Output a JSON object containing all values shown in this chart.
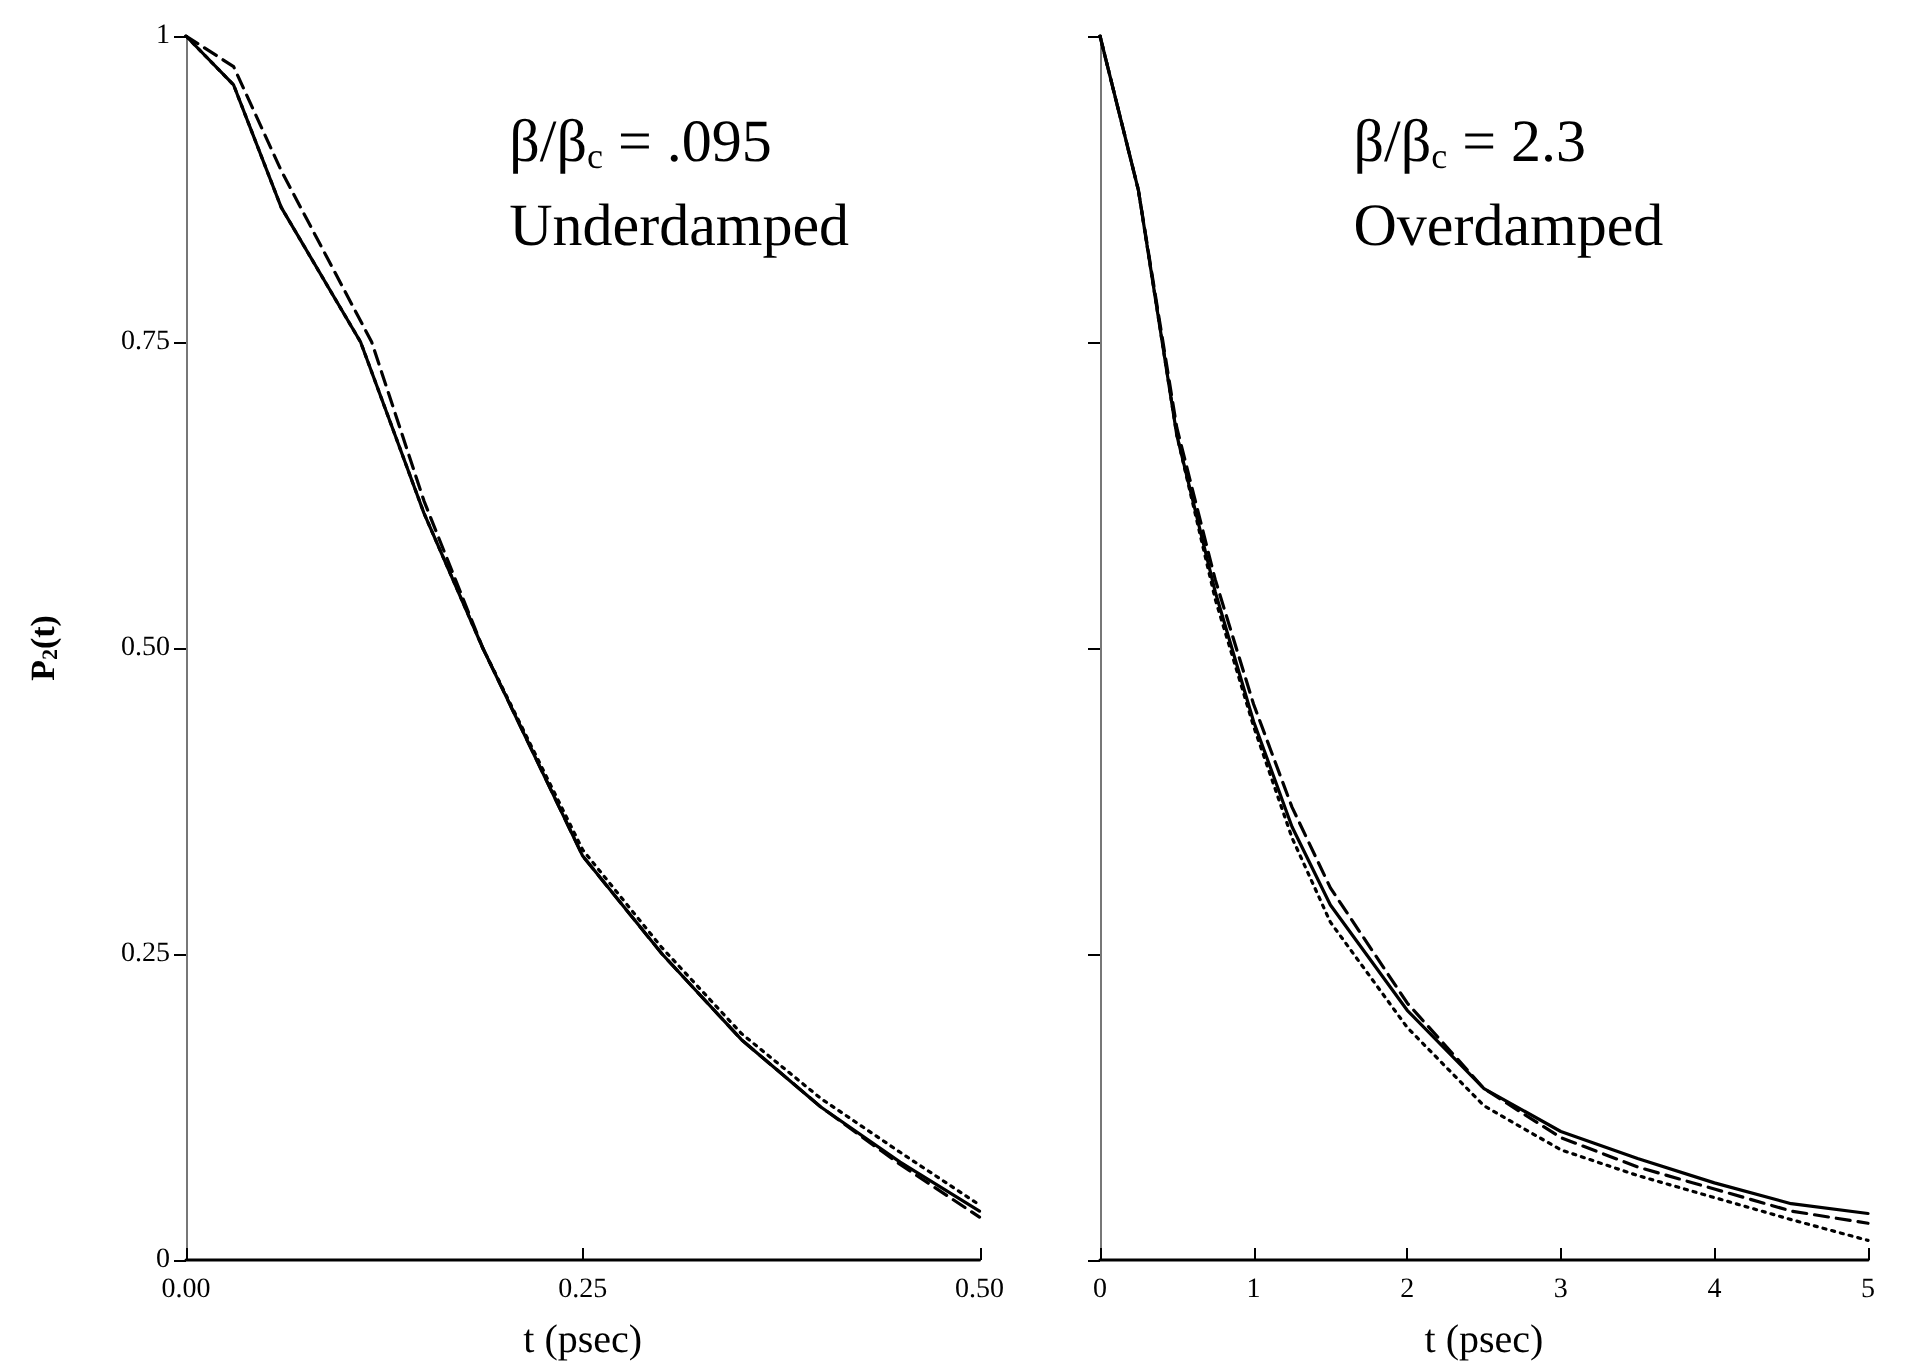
{
  "chart_data": [
    {
      "type": "line",
      "xlabel": "t (psec)",
      "ylabel": "P$_{2}$(t)",
      "annotations": [
        "β/β$_{c}$ = .095",
        "Underdamped"
      ],
      "xlim": [
        0,
        0.5
      ],
      "xticks": [
        {
          "value": 0,
          "label": "0.00"
        },
        0.25,
        {
          "value": 0.5,
          "label": "0.50"
        }
      ],
      "ylim": [
        0,
        1
      ],
      "yticks": [
        0,
        0.25,
        {
          "value": 0.5,
          "label": "0.50"
        },
        0.75,
        1
      ],
      "series": [
        {
          "color": "#000000",
          "line_style": "solid",
          "x": [
            0,
            0.03,
            0.06,
            0.11,
            0.15,
            0.187,
            0.25,
            0.3,
            0.35,
            0.4,
            0.45,
            0.5
          ],
          "values": [
            1,
            0.96,
            0.86,
            0.75,
            0.61,
            0.5,
            0.33,
            0.25,
            0.18,
            0.125,
            0.08,
            0.04
          ]
        },
        {
          "color": "#000000",
          "line_style": "dashed",
          "x": [
            0,
            0.03,
            0.06,
            0.117,
            0.15,
            0.187,
            0.25,
            0.3,
            0.35,
            0.4,
            0.45,
            0.5
          ],
          "values": [
            1,
            0.975,
            0.89,
            0.75,
            0.62,
            0.5,
            0.33,
            0.25,
            0.18,
            0.125,
            0.078,
            0.035
          ]
        },
        {
          "color": "#000000",
          "line_style": "dotted",
          "x": [
            0,
            0.03,
            0.06,
            0.11,
            0.15,
            0.187,
            0.25,
            0.3,
            0.35,
            0.4,
            0.45,
            0.5
          ],
          "values": [
            1,
            0.96,
            0.86,
            0.75,
            0.61,
            0.5,
            0.335,
            0.255,
            0.185,
            0.132,
            0.088,
            0.045
          ]
        }
      ]
    },
    {
      "type": "line",
      "xlabel": "t (psec)",
      "annotations": [
        "β/β$_{c}$ = 2.3",
        "Overdamped"
      ],
      "xlim": [
        0,
        5
      ],
      "xticks": [
        0,
        1,
        2,
        3,
        4,
        5
      ],
      "ylim": [
        0,
        1
      ],
      "yticks": [
        0,
        0.25,
        0.5,
        0.75,
        1
      ],
      "tick_labels": "x",
      "series": [
        {
          "color": "#000000",
          "line_style": "solid",
          "x": [
            0,
            0.25,
            0.5,
            0.75,
            1,
            1.25,
            1.5,
            2,
            2.5,
            3,
            3.5,
            4,
            4.5,
            5
          ],
          "values": [
            1,
            0.874,
            0.674,
            0.546,
            0.44,
            0.354,
            0.29,
            0.204,
            0.14,
            0.105,
            0.083,
            0.063,
            0.046,
            0.038
          ]
        },
        {
          "color": "#000000",
          "line_style": "dashed",
          "x": [
            0,
            0.25,
            0.5,
            0.75,
            1,
            1.25,
            1.5,
            2,
            2.5,
            3,
            3.5,
            4,
            4.5,
            5
          ],
          "values": [
            1,
            0.874,
            0.68,
            0.556,
            0.454,
            0.37,
            0.304,
            0.21,
            0.14,
            0.1,
            0.076,
            0.058,
            0.04,
            0.03
          ]
        },
        {
          "color": "#000000",
          "line_style": "dotted",
          "x": [
            0,
            0.25,
            0.5,
            0.75,
            1,
            1.25,
            1.5,
            2,
            2.5,
            3,
            3.5,
            4,
            4.5,
            5
          ],
          "values": [
            1,
            0.874,
            0.674,
            0.54,
            0.436,
            0.345,
            0.276,
            0.19,
            0.126,
            0.09,
            0.069,
            0.051,
            0.033,
            0.016
          ]
        }
      ]
    }
  ]
}
